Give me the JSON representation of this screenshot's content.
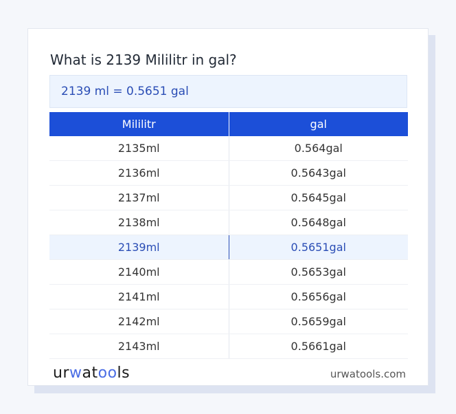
{
  "title": "What is 2139 Mililitr in gal?",
  "result": "2139 ml = 0.5651 gal",
  "table": {
    "headers": [
      "Mililitr",
      "gal"
    ],
    "rows": [
      [
        "2135ml",
        "0.564gal"
      ],
      [
        "2136ml",
        "0.5643gal"
      ],
      [
        "2137ml",
        "0.5645gal"
      ],
      [
        "2138ml",
        "0.5648gal"
      ],
      [
        "2139ml",
        "0.5651gal"
      ],
      [
        "2140ml",
        "0.5653gal"
      ],
      [
        "2141ml",
        "0.5656gal"
      ],
      [
        "2142ml",
        "0.5659gal"
      ],
      [
        "2143ml",
        "0.5661gal"
      ]
    ],
    "highlighted_index": 4
  },
  "footer": {
    "logo": "urwatools",
    "site": "urwatools.com"
  },
  "colors": {
    "accent": "#1c4fd8",
    "highlight": "#edf4fe"
  }
}
